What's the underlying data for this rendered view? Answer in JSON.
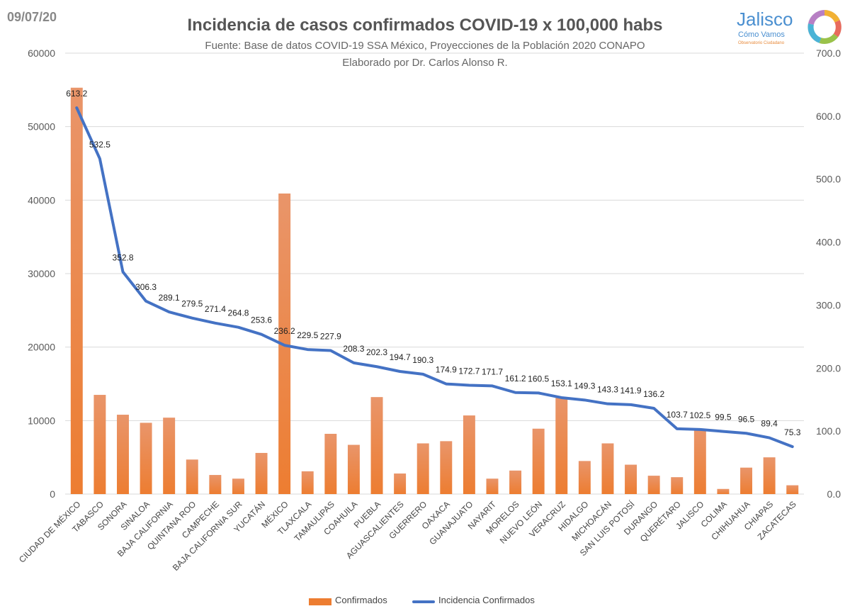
{
  "header": {
    "date": "09/07/20",
    "logo_brand": "Jalisco",
    "logo_sub": "Cómo Vamos",
    "logo_tag": "Observatorio Ciudadano"
  },
  "chart_data": {
    "type": "bar+line",
    "title": "Incidencia de casos confirmados COVID-19 x 100,000 habs",
    "subtitle": "Fuente: Base de datos COVID-19 SSA México, Proyecciones de la Población 2020 CONAPO",
    "subtitle2": "Elaborado por Dr. Carlos Alonso R.",
    "categories": [
      "CIUDAD DE MÉXICO",
      "TABASCO",
      "SONORA",
      "SINALOA",
      "BAJA CALIFORNIA",
      "QUINTANA ROO",
      "CAMPECHE",
      "BAJA CALIFORNIA SUR",
      "YUCATÁN",
      "MÉXICO",
      "TLAXCALA",
      "TAMAULIPAS",
      "COAHUILA",
      "PUEBLA",
      "AGUASCALIENTES",
      "GUERRERO",
      "OAXACA",
      "GUANAJUATO",
      "NAYARIT",
      "MORELOS",
      "NUEVO LEÓN",
      "VERACRUZ",
      "HIDALGO",
      "MICHOACÁN",
      "SAN LUIS POTOSÍ",
      "DURANGO",
      "QUERÉTARO",
      "JALISCO",
      "COLIMA",
      "CHIHUAHUA",
      "CHIAPAS",
      "ZACATECAS"
    ],
    "series": [
      {
        "name": "Confirmados",
        "type": "bar",
        "axis": "left",
        "color": "#ED7D31",
        "values": [
          55300,
          13500,
          10800,
          9700,
          10400,
          4700,
          2600,
          2100,
          5600,
          40900,
          3100,
          8200,
          6700,
          13200,
          2800,
          6900,
          7200,
          10700,
          2100,
          3200,
          8900,
          13100,
          4500,
          6900,
          4000,
          2500,
          2300,
          8800,
          700,
          3600,
          5000,
          1200
        ]
      },
      {
        "name": "Incidencia Confirmados",
        "type": "line",
        "axis": "right",
        "color": "#4472C4",
        "values": [
          613.2,
          532.5,
          352.8,
          306.3,
          289.1,
          279.5,
          271.4,
          264.8,
          253.6,
          236.2,
          229.5,
          227.9,
          208.3,
          202.3,
          194.7,
          190.3,
          174.9,
          172.7,
          171.7,
          161.2,
          160.5,
          153.1,
          149.3,
          143.3,
          141.9,
          136.2,
          103.7,
          102.5,
          99.5,
          96.5,
          89.4,
          75.3
        ],
        "labels": [
          "613.2",
          "532.5",
          "352.8",
          "306.3",
          "289.1",
          "279.5",
          "271.4",
          "264.8",
          "253.6",
          "236.2",
          "229.5",
          "227.9",
          "208.3",
          "202.3",
          "194.7",
          "190.3",
          "174.9",
          "172.7",
          "171.7",
          "161.2",
          "160.5",
          "153.1",
          "149.3",
          "143.3",
          "141.9",
          "136.2",
          "103.7",
          "102.5",
          "99.5",
          "96.5",
          "89.4",
          "75.3"
        ]
      }
    ],
    "ylim_left": [
      0,
      60000
    ],
    "yticks_left": [
      "0",
      "10000",
      "20000",
      "30000",
      "40000",
      "50000",
      "60000"
    ],
    "ylim_right": [
      0,
      700
    ],
    "yticks_right": [
      "0.0",
      "100.0",
      "200.0",
      "300.0",
      "400.0",
      "500.0",
      "600.0",
      "700.0"
    ],
    "grid": true,
    "legend": {
      "position": "bottom",
      "items": [
        "Confirmados",
        "Incidencia Confirmados"
      ]
    }
  }
}
